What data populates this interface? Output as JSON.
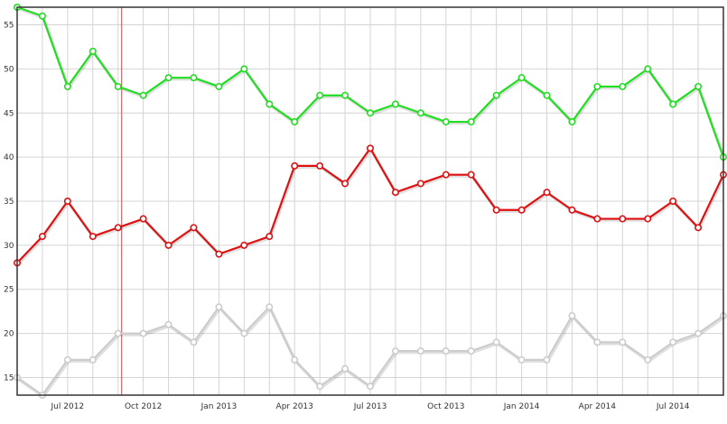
{
  "chart_data": {
    "type": "line",
    "title": "",
    "xlabel": "",
    "ylabel": "",
    "ylim": [
      13,
      57
    ],
    "yticks": [
      15,
      20,
      25,
      30,
      35,
      40,
      45,
      50,
      55
    ],
    "x_tick_labels": [
      "Jul 2012",
      "Oct 2012",
      "Jan 2013",
      "Apr 2013",
      "Jul 2013",
      "Oct 2013",
      "Jan 2014",
      "Apr 2014",
      "Jul 2014"
    ],
    "x_tick_index": [
      2,
      5,
      8,
      11,
      14,
      17,
      20,
      23,
      26
    ],
    "grid": true,
    "marker_line_index": 4,
    "series": [
      {
        "color": "#22dd22",
        "values": [
          57,
          56,
          48,
          52,
          48,
          47,
          49,
          49,
          48,
          50,
          46,
          44,
          47,
          47,
          45,
          46,
          45,
          44,
          44,
          47,
          49,
          47,
          44,
          48,
          48,
          50,
          46,
          48,
          40
        ]
      },
      {
        "color": "#dd1111",
        "values": [
          28,
          31,
          35,
          31,
          32,
          33,
          30,
          32,
          29,
          30,
          31,
          39,
          39,
          37,
          41,
          36,
          37,
          38,
          38,
          34,
          34,
          36,
          34,
          33,
          33,
          33,
          35,
          32,
          38
        ]
      },
      {
        "color": "#cccccc",
        "values": [
          15,
          13,
          17,
          17,
          20,
          20,
          21,
          19,
          23,
          20,
          23,
          17,
          14,
          16,
          14,
          18,
          18,
          18,
          18,
          19,
          17,
          17,
          22,
          19,
          19,
          17,
          19,
          20,
          22
        ]
      }
    ]
  }
}
